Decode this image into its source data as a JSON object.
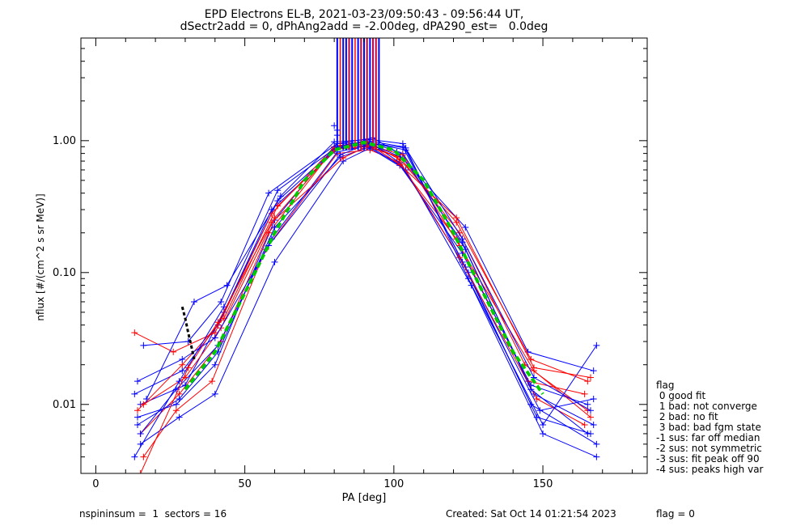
{
  "title_line1": "EPD Electrons EL-B, 2021-03-23/09:50:43 - 09:56:44 UT,",
  "title_line2": "dSectr2add = 0, dPhAng2add = -2.00deg, dPA290_est=   0.0deg",
  "footer": {
    "left": "nspininsum =  1  sectors = 16",
    "created": "Created: Sat Oct 14 01:21:54 2023",
    "flag": "flag = 0"
  },
  "legend": {
    "title": "flag",
    "items": [
      " 0 good fit",
      " 1 bad: not converge",
      " 2 bad: no fit",
      " 3 bad: bad fgm state",
      "-1 sus: far off median",
      "-2 sus: not symmetric",
      "-3 sus: fit peak off 90",
      "-4 sus: peaks high var"
    ]
  },
  "chart_data": {
    "type": "line",
    "title": "EPD Electrons EL-B, 2021-03-23/09:50:43 - 09:56:44 UT,",
    "subtitle": "dSectr2add = 0, dPhAng2add = -2.00deg, dPA290_est=   0.0deg",
    "xlabel": "PA [deg]",
    "ylabel": "nflux [#/(cm^2 s sr MeV)]",
    "xlim": [
      -5,
      185
    ],
    "ylim": [
      0.003,
      6
    ],
    "yscale": "log",
    "xticks": [
      0,
      50,
      100,
      150
    ],
    "xtick_labels": [
      "0",
      "50",
      "100",
      "150"
    ],
    "yticks": [
      0.01,
      0.1,
      1.0
    ],
    "ytick_labels": [
      "0.01",
      "0.10",
      "1.00"
    ],
    "colors": {
      "red": "#ff0000",
      "blue": "#0000ff",
      "green": "#00cc00",
      "black": "#000000"
    },
    "series": [
      {
        "color": "blue",
        "pa": [
          14,
          27,
          40,
          60,
          81,
          92,
          103,
          124,
          147,
          167
        ],
        "flux": [
          0.008,
          0.01,
          0.02,
          0.25,
          0.95,
          0.97,
          0.8,
          0.15,
          0.012,
          0.007
        ]
      },
      {
        "color": "red",
        "pa": [
          15,
          28,
          42,
          58,
          80,
          91,
          102,
          122,
          144,
          165
        ],
        "flux": [
          0.006,
          0.012,
          0.03,
          0.2,
          0.88,
          0.92,
          0.75,
          0.2,
          0.02,
          0.009
        ]
      },
      {
        "color": "blue",
        "pa": [
          13,
          29,
          41,
          59,
          82,
          93,
          104,
          123,
          146,
          168
        ],
        "flux": [
          0.012,
          0.018,
          0.04,
          0.3,
          0.9,
          0.95,
          0.85,
          0.12,
          0.01,
          0.005
        ]
      },
      {
        "color": "red",
        "pa": [
          16,
          27,
          39,
          57,
          81,
          92,
          101,
          121,
          145,
          164
        ],
        "flux": [
          0.004,
          0.009,
          0.015,
          0.15,
          0.8,
          0.85,
          0.7,
          0.18,
          0.015,
          0.012
        ]
      },
      {
        "color": "blue",
        "pa": [
          15,
          30,
          43,
          61,
          80,
          91,
          103,
          125,
          148,
          166
        ],
        "flux": [
          0.01,
          0.014,
          0.05,
          0.35,
          0.85,
          1.0,
          0.9,
          0.1,
          0.008,
          0.006
        ]
      },
      {
        "color": "blue",
        "pa": [
          14,
          28,
          41,
          60,
          82,
          92,
          102,
          123,
          146,
          165
        ],
        "flux": [
          0.007,
          0.011,
          0.025,
          0.22,
          0.75,
          0.9,
          0.65,
          0.14,
          0.014,
          0.01
        ]
      },
      {
        "color": "red",
        "pa": [
          13,
          26,
          40,
          59,
          80,
          90,
          103,
          122,
          147,
          166
        ],
        "flux": [
          0.035,
          0.025,
          0.035,
          0.28,
          0.9,
          0.95,
          0.78,
          0.16,
          0.018,
          0.008
        ]
      },
      {
        "color": "blue",
        "pa": [
          16,
          31,
          42,
          58,
          81,
          93,
          101,
          124,
          145,
          167
        ],
        "flux": [
          0.028,
          0.03,
          0.06,
          0.4,
          0.95,
          1.05,
          0.82,
          0.22,
          0.025,
          0.018
        ]
      },
      {
        "color": "blue",
        "pa": [
          15,
          28,
          40,
          60,
          83,
          92,
          104,
          126,
          150,
          168
        ],
        "flux": [
          0.005,
          0.008,
          0.012,
          0.12,
          0.7,
          0.88,
          0.6,
          0.08,
          0.006,
          0.004
        ]
      },
      {
        "color": "red",
        "pa": [
          14,
          29,
          43,
          61,
          82,
          91,
          102,
          121,
          146,
          165
        ],
        "flux": [
          0.009,
          0.02,
          0.045,
          0.32,
          0.92,
          0.98,
          0.72,
          0.24,
          0.022,
          0.015
        ]
      },
      {
        "color": "blue",
        "pa": [
          17,
          33,
          44,
          62,
          80,
          92,
          103,
          123,
          147,
          166
        ],
        "flux": [
          0.011,
          0.06,
          0.08,
          0.38,
          0.98,
          1.02,
          0.95,
          0.18,
          0.016,
          0.009
        ]
      },
      {
        "color": "blue",
        "pa": [
          15,
          27,
          41,
          59,
          81,
          93,
          102,
          124,
          149,
          167
        ],
        "flux": [
          0.006,
          0.013,
          0.028,
          0.18,
          0.82,
          0.94,
          0.68,
          0.11,
          0.009,
          0.011
        ]
      },
      {
        "color": "red",
        "pa": [
          16,
          30,
          42,
          60,
          80,
          91,
          101,
          122,
          148,
          164
        ],
        "flux": [
          0.01,
          0.016,
          0.038,
          0.26,
          0.86,
          0.9,
          0.76,
          0.13,
          0.011,
          0.007
        ]
      },
      {
        "color": "blue",
        "pa": [
          14,
          29,
          40,
          58,
          82,
          92,
          104,
          125,
          150,
          168
        ],
        "flux": [
          0.015,
          0.022,
          0.032,
          0.16,
          0.78,
          0.96,
          0.88,
          0.09,
          0.007,
          0.028
        ]
      },
      {
        "color": "blue",
        "pa": [
          13,
          28,
          43,
          61,
          81,
          90,
          103,
          123,
          146,
          165
        ],
        "flux": [
          0.004,
          0.015,
          0.055,
          0.42,
          0.9,
          0.99,
          0.74,
          0.17,
          0.013,
          0.006
        ]
      },
      {
        "color": "red",
        "pa": [
          15,
          31,
          41,
          59,
          83,
          92,
          102,
          121,
          147,
          166
        ],
        "flux": [
          0.003,
          0.019,
          0.042,
          0.24,
          0.74,
          0.93,
          0.66,
          0.26,
          0.019,
          0.016
        ]
      }
    ],
    "spikes": {
      "color": "blue",
      "pa": [
        81,
        83,
        84,
        85,
        86,
        88,
        89,
        90,
        91,
        92,
        93,
        94,
        95
      ]
    },
    "spikes_red": {
      "color": "red",
      "pa": [
        82,
        85,
        87,
        89,
        91,
        93,
        94
      ]
    },
    "outer_markers": {
      "pa": [
        80,
        81,
        81
      ],
      "flux": [
        1.3,
        1.1,
        1.2
      ]
    },
    "fit": {
      "name": "",
      "color": "green",
      "pa": [
        30,
        40,
        50,
        60,
        70,
        80,
        90,
        100,
        110,
        120,
        130,
        140,
        150
      ],
      "flux": [
        0.013,
        0.025,
        0.07,
        0.2,
        0.5,
        0.85,
        0.97,
        0.85,
        0.5,
        0.2,
        0.07,
        0.025,
        0.012
      ]
    },
    "median_start": {
      "color": "black",
      "pa": [
        29,
        30,
        31,
        32,
        33
      ],
      "flux": [
        0.055,
        0.045,
        0.035,
        0.028,
        0.022
      ]
    }
  }
}
